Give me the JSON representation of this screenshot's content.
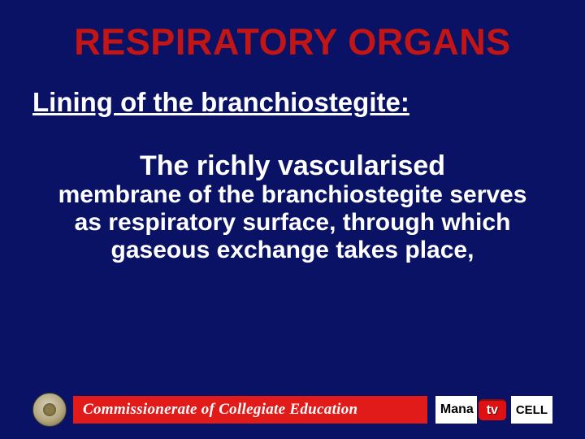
{
  "colors": {
    "background": "#0a1266",
    "title": "#c21515",
    "text": "#ffffff",
    "footer_bar": "#e11a1a",
    "tv_badge": "#d11a1a"
  },
  "typography": {
    "title_fontsize": 45,
    "subtitle_fontsize": 33,
    "body_line1_fontsize": 34,
    "body_rest_fontsize": 30,
    "footer_fontsize": 19
  },
  "title": "RESPIRATORY ORGANS",
  "subtitle": "Lining of the branchiostegite:",
  "body": {
    "line1": "The richly vascularised",
    "rest": "membrane of the branchiostegite serves as respiratory surface, through which gaseous exchange takes place,"
  },
  "footer": {
    "commissionerate": "Commissionerate of Collegiate Education",
    "mana": "Mana",
    "tv": "tv",
    "cell": "CELL"
  }
}
